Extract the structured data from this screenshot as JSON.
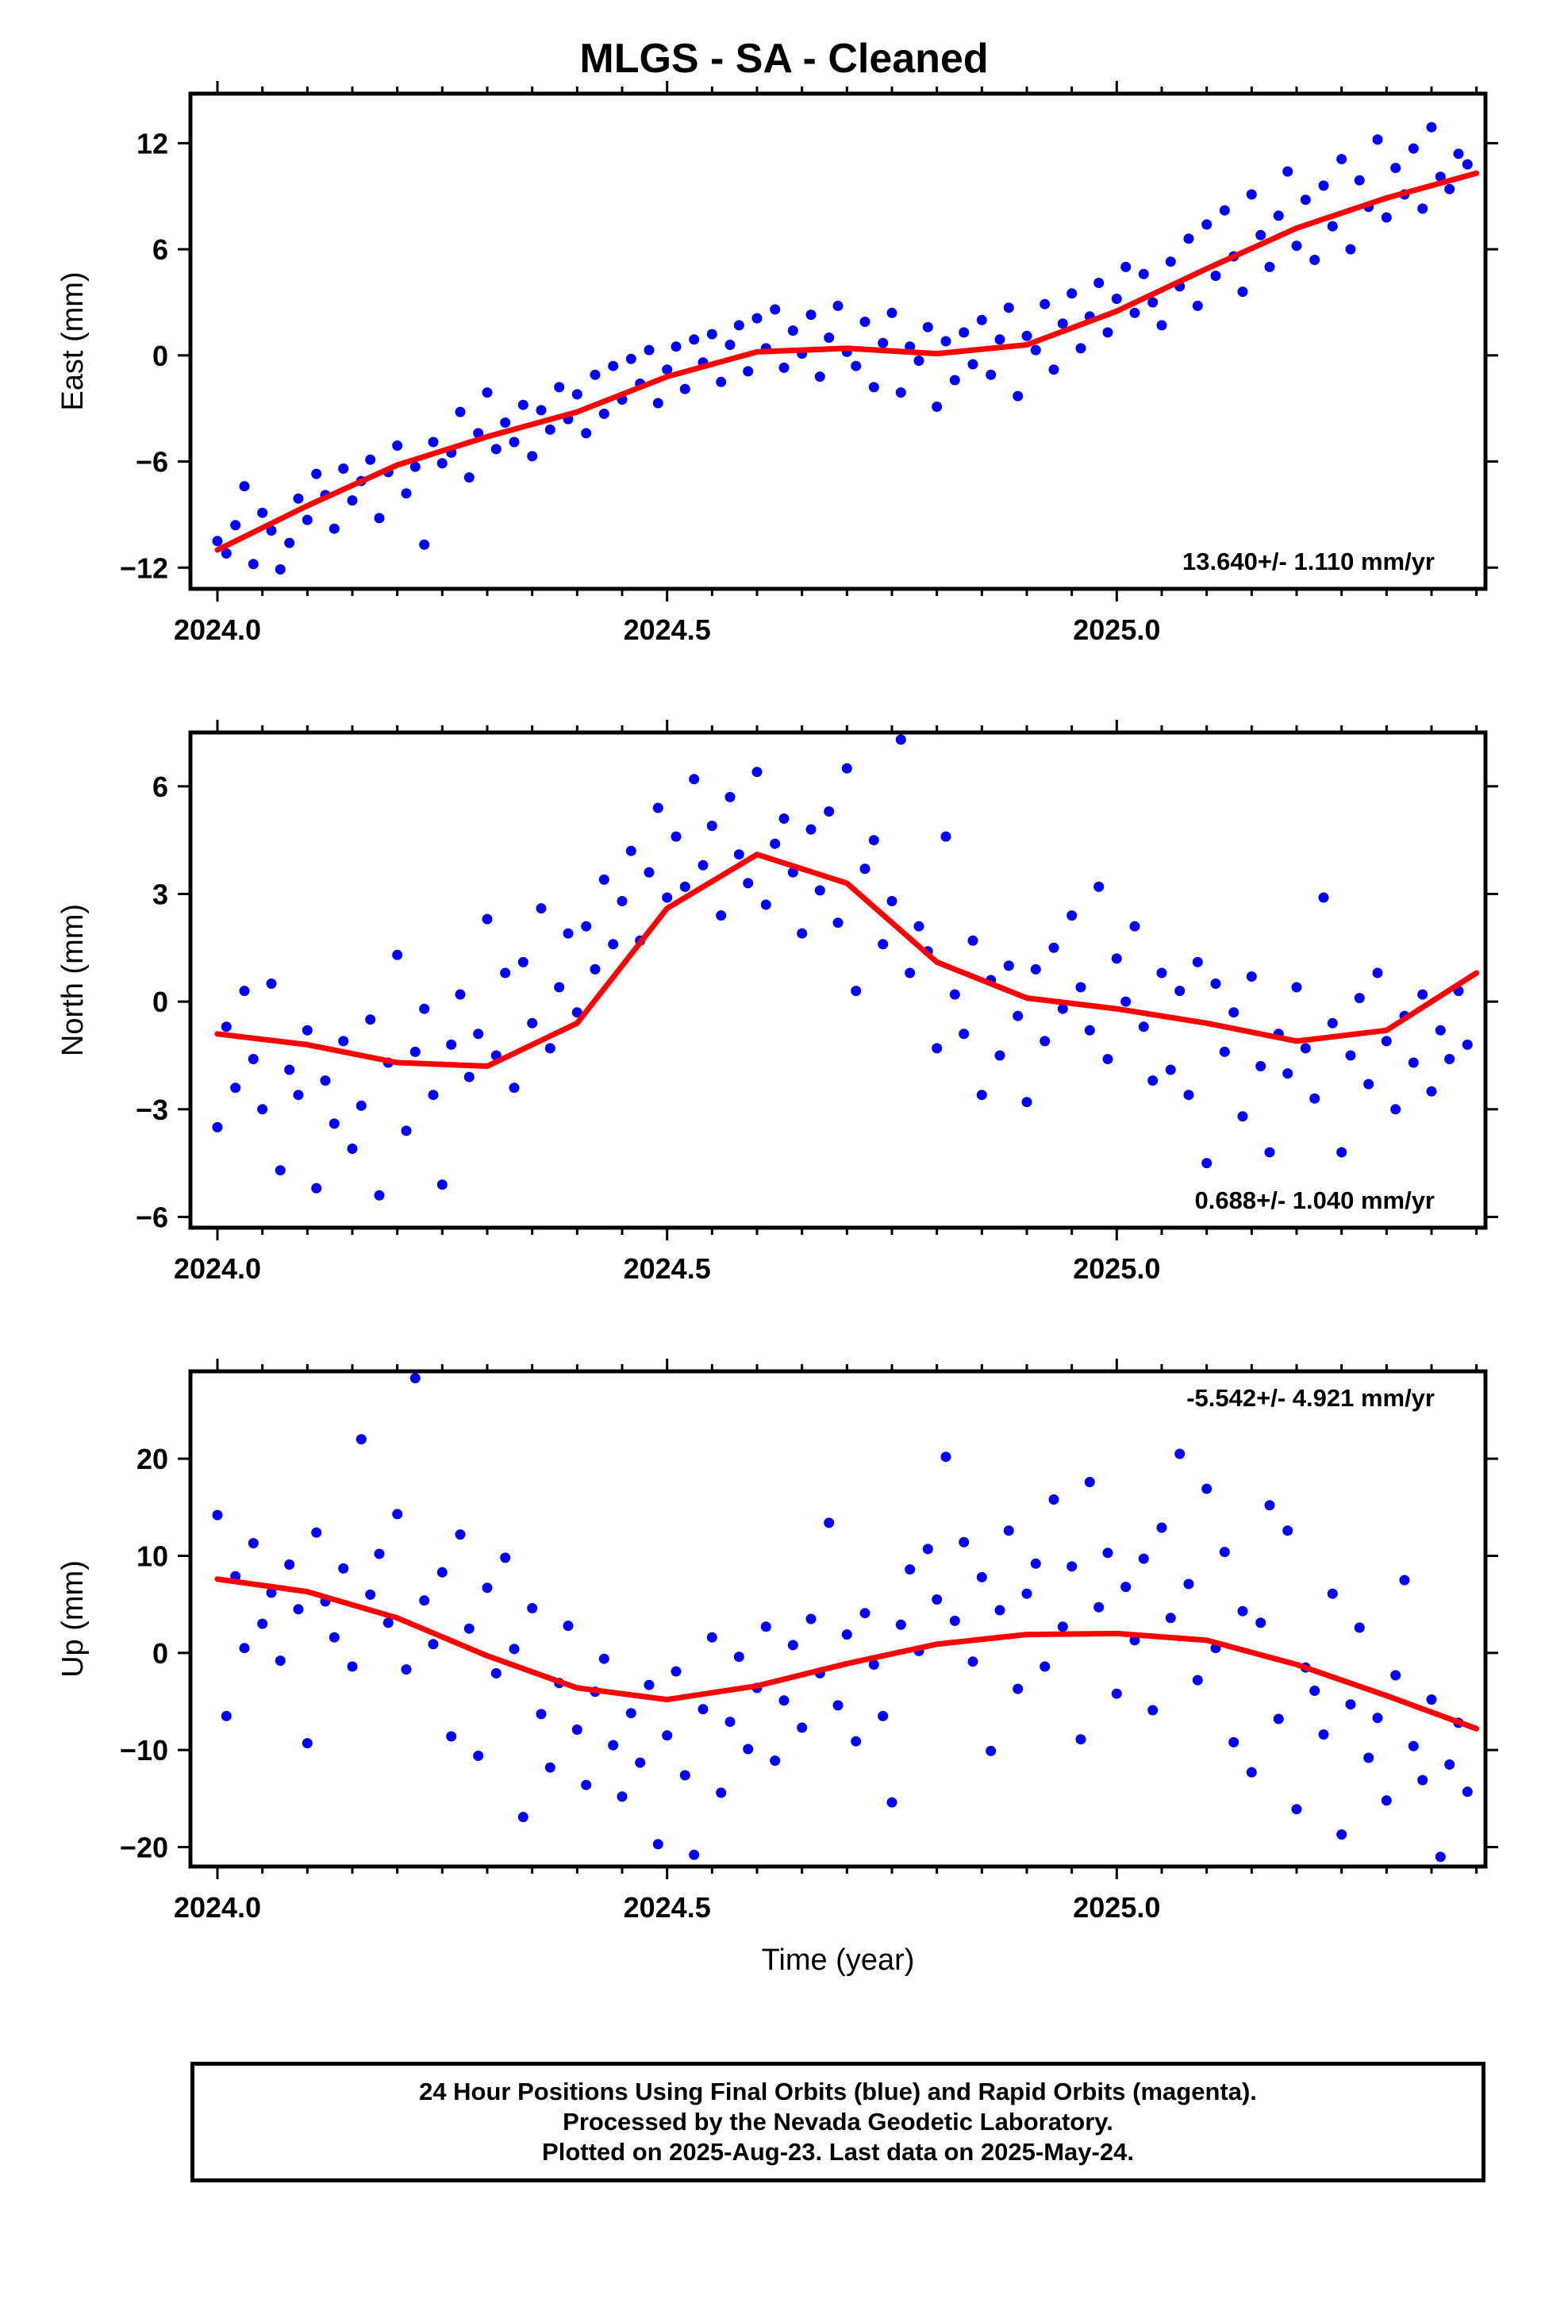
{
  "title": "MLGS  - SA - Cleaned",
  "footer": {
    "line1": "24 Hour Positions Using Final Orbits (blue) and Rapid Orbits (magenta).",
    "line2": "Processed by the Nevada Geodetic Laboratory.",
    "line3": "Plotted on 2025-Aug-23. Last data on 2025-May-24."
  },
  "colors": {
    "points": "#0000ff",
    "fit": "#ff0000",
    "axes": "#000000"
  },
  "chart_data": [
    {
      "type": "scatter",
      "name": "east",
      "ylabel": "East (mm)",
      "xlabel": "",
      "xlim": [
        2023.97,
        2025.41
      ],
      "ylim": [
        -13.2,
        14.8
      ],
      "xticks": [
        2024.0,
        2024.5,
        2025.0
      ],
      "xtick_labels": [
        "2024.0",
        "2024.5",
        "2025.0"
      ],
      "yticks": [
        -12,
        -6,
        0,
        6,
        12
      ],
      "ytick_labels": [
        "−12",
        "−6",
        "0",
        "6",
        "12"
      ],
      "rate_text": "13.640+/- 1.110 mm/yr",
      "rate_position": "bottom-right",
      "fit": {
        "x": [
          2024.0,
          2024.1,
          2024.2,
          2024.3,
          2024.4,
          2024.5,
          2024.6,
          2024.7,
          2024.8,
          2024.9,
          2025.0,
          2025.1,
          2025.2,
          2025.3,
          2025.4
        ],
        "y": [
          -11.0,
          -8.5,
          -6.2,
          -4.6,
          -3.2,
          -1.2,
          0.2,
          0.4,
          0.1,
          0.6,
          2.5,
          4.9,
          7.2,
          8.9,
          10.3
        ]
      },
      "points": {
        "x": [
          2024.0,
          2024.01,
          2024.02,
          2024.03,
          2024.04,
          2024.05,
          2024.06,
          2024.07,
          2024.08,
          2024.09,
          2024.1,
          2024.11,
          2024.12,
          2024.13,
          2024.14,
          2024.15,
          2024.16,
          2024.17,
          2024.18,
          2024.19,
          2024.2,
          2024.21,
          2024.22,
          2024.23,
          2024.24,
          2024.25,
          2024.26,
          2024.27,
          2024.28,
          2024.29,
          2024.3,
          2024.31,
          2024.32,
          2024.33,
          2024.34,
          2024.35,
          2024.36,
          2024.37,
          2024.38,
          2024.39,
          2024.4,
          2024.41,
          2024.42,
          2024.43,
          2024.44,
          2024.45,
          2024.46,
          2024.47,
          2024.48,
          2024.49,
          2024.5,
          2024.51,
          2024.52,
          2024.53,
          2024.54,
          2024.55,
          2024.56,
          2024.57,
          2024.58,
          2024.59,
          2024.6,
          2024.61,
          2024.62,
          2024.63,
          2024.64,
          2024.65,
          2024.66,
          2024.67,
          2024.68,
          2024.69,
          2024.7,
          2024.71,
          2024.72,
          2024.73,
          2024.74,
          2024.75,
          2024.76,
          2024.77,
          2024.78,
          2024.79,
          2024.8,
          2024.81,
          2024.82,
          2024.83,
          2024.84,
          2024.85,
          2024.86,
          2024.87,
          2024.88,
          2024.89,
          2024.9,
          2024.91,
          2024.92,
          2024.93,
          2024.94,
          2024.95,
          2024.96,
          2024.97,
          2024.98,
          2024.99,
          2025.0,
          2025.01,
          2025.02,
          2025.03,
          2025.04,
          2025.05,
          2025.06,
          2025.07,
          2025.08,
          2025.09,
          2025.1,
          2025.11,
          2025.12,
          2025.13,
          2025.14,
          2025.15,
          2025.16,
          2025.17,
          2025.18,
          2025.19,
          2025.2,
          2025.21,
          2025.22,
          2025.23,
          2025.24,
          2025.25,
          2025.26,
          2025.27,
          2025.28,
          2025.29,
          2025.3,
          2025.31,
          2025.32,
          2025.33,
          2025.34,
          2025.35,
          2025.36,
          2025.37,
          2025.38,
          2025.39
        ],
        "y": [
          -10.5,
          -11.2,
          -9.6,
          -7.4,
          -11.8,
          -8.9,
          -9.9,
          -12.1,
          -10.6,
          -8.1,
          -9.3,
          -6.7,
          -7.9,
          -9.8,
          -6.4,
          -8.2,
          -7.1,
          -5.9,
          -9.2,
          -6.6,
          -5.1,
          -7.8,
          -6.3,
          -10.7,
          -4.9,
          -6.1,
          -5.5,
          -3.2,
          -6.9,
          -4.4,
          -2.1,
          -5.3,
          -3.8,
          -4.9,
          -2.8,
          -5.7,
          -3.1,
          -4.2,
          -1.8,
          -3.6,
          -2.2,
          -4.4,
          -1.1,
          -3.3,
          -0.6,
          -2.5,
          -0.2,
          -1.6,
          0.3,
          -2.7,
          -0.8,
          0.5,
          -1.9,
          0.9,
          -0.4,
          1.2,
          -1.5,
          0.6,
          1.7,
          -0.9,
          2.1,
          0.4,
          2.6,
          -0.7,
          1.4,
          0.1,
          2.3,
          -1.2,
          1.0,
          2.8,
          0.2,
          -0.6,
          1.9,
          -1.8,
          0.7,
          2.4,
          -2.1,
          0.5,
          -0.3,
          1.6,
          -2.9,
          0.8,
          -1.4,
          1.3,
          -0.5,
          2.0,
          -1.1,
          0.9,
          2.7,
          -2.3,
          1.1,
          0.3,
          2.9,
          -0.8,
          1.8,
          3.5,
          0.4,
          2.2,
          4.1,
          1.3,
          3.2,
          5.0,
          2.4,
          4.6,
          3.0,
          1.7,
          5.3,
          3.9,
          6.6,
          2.8,
          7.4,
          4.5,
          8.2,
          5.6,
          3.6,
          9.1,
          6.8,
          5.0,
          7.9,
          10.4,
          6.2,
          8.8,
          5.4,
          9.6,
          7.3,
          11.1,
          6.0,
          9.9,
          8.4,
          12.2,
          7.8,
          10.6,
          9.1,
          11.7,
          8.3,
          12.9,
          10.1,
          9.4,
          11.4,
          10.8
        ]
      }
    },
    {
      "type": "scatter",
      "name": "north",
      "ylabel": "North (mm)",
      "xlabel": "",
      "xlim": [
        2023.97,
        2025.41
      ],
      "ylim": [
        -6.3,
        7.5
      ],
      "xticks": [
        2024.0,
        2024.5,
        2025.0
      ],
      "xtick_labels": [
        "2024.0",
        "2024.5",
        "2025.0"
      ],
      "yticks": [
        -6,
        -3,
        0,
        3,
        6
      ],
      "ytick_labels": [
        "−6",
        "−3",
        "0",
        "3",
        "6"
      ],
      "rate_text": "0.688+/- 1.040 mm/yr",
      "rate_position": "bottom-right",
      "fit": {
        "x": [
          2024.0,
          2024.1,
          2024.2,
          2024.3,
          2024.4,
          2024.5,
          2024.6,
          2024.7,
          2024.8,
          2024.9,
          2025.0,
          2025.1,
          2025.2,
          2025.3,
          2025.4
        ],
        "y": [
          -0.9,
          -1.2,
          -1.7,
          -1.8,
          -0.6,
          2.6,
          4.1,
          3.3,
          1.1,
          0.1,
          -0.2,
          -0.6,
          -1.1,
          -0.8,
          0.8
        ]
      },
      "points": {
        "x": [
          2024.0,
          2024.01,
          2024.02,
          2024.03,
          2024.04,
          2024.05,
          2024.06,
          2024.07,
          2024.08,
          2024.09,
          2024.1,
          2024.11,
          2024.12,
          2024.13,
          2024.14,
          2024.15,
          2024.16,
          2024.17,
          2024.18,
          2024.19,
          2024.2,
          2024.21,
          2024.22,
          2024.23,
          2024.24,
          2024.25,
          2024.26,
          2024.27,
          2024.28,
          2024.29,
          2024.3,
          2024.31,
          2024.32,
          2024.33,
          2024.34,
          2024.35,
          2024.36,
          2024.37,
          2024.38,
          2024.39,
          2024.4,
          2024.41,
          2024.42,
          2024.43,
          2024.44,
          2024.45,
          2024.46,
          2024.47,
          2024.48,
          2024.49,
          2024.5,
          2024.51,
          2024.52,
          2024.53,
          2024.54,
          2024.55,
          2024.56,
          2024.57,
          2024.58,
          2024.59,
          2024.6,
          2024.61,
          2024.62,
          2024.63,
          2024.64,
          2024.65,
          2024.66,
          2024.67,
          2024.68,
          2024.69,
          2024.7,
          2024.71,
          2024.72,
          2024.73,
          2024.74,
          2024.75,
          2024.76,
          2024.77,
          2024.78,
          2024.79,
          2024.8,
          2024.81,
          2024.82,
          2024.83,
          2024.84,
          2024.85,
          2024.86,
          2024.87,
          2024.88,
          2024.89,
          2024.9,
          2024.91,
          2024.92,
          2024.93,
          2024.94,
          2024.95,
          2024.96,
          2024.97,
          2024.98,
          2024.99,
          2025.0,
          2025.01,
          2025.02,
          2025.03,
          2025.04,
          2025.05,
          2025.06,
          2025.07,
          2025.08,
          2025.09,
          2025.1,
          2025.11,
          2025.12,
          2025.13,
          2025.14,
          2025.15,
          2025.16,
          2025.17,
          2025.18,
          2025.19,
          2025.2,
          2025.21,
          2025.22,
          2025.23,
          2025.24,
          2025.25,
          2025.26,
          2025.27,
          2025.28,
          2025.29,
          2025.3,
          2025.31,
          2025.32,
          2025.33,
          2025.34,
          2025.35,
          2025.36,
          2025.37,
          2025.38,
          2025.39
        ],
        "y": [
          -3.5,
          -0.7,
          -2.4,
          0.3,
          -1.6,
          -3.0,
          0.5,
          -4.7,
          -1.9,
          -2.6,
          -0.8,
          -5.2,
          -2.2,
          -3.4,
          -1.1,
          -4.1,
          -2.9,
          -0.5,
          -5.4,
          -1.7,
          1.3,
          -3.6,
          -1.4,
          -0.2,
          -2.6,
          -5.1,
          -1.2,
          0.2,
          -2.1,
          -0.9,
          2.3,
          -1.5,
          0.8,
          -2.4,
          1.1,
          -0.6,
          2.6,
          -1.3,
          0.4,
          1.9,
          -0.3,
          2.1,
          0.9,
          3.4,
          1.6,
          2.8,
          4.2,
          1.7,
          3.6,
          5.4,
          2.9,
          4.6,
          3.2,
          6.2,
          3.8,
          4.9,
          2.4,
          5.7,
          4.1,
          3.3,
          6.4,
          2.7,
          4.4,
          5.1,
          3.6,
          1.9,
          4.8,
          3.1,
          5.3,
          2.2,
          6.5,
          0.3,
          3.7,
          4.5,
          1.6,
          2.8,
          7.3,
          0.8,
          2.1,
          1.4,
          -1.3,
          4.6,
          0.2,
          -0.9,
          1.7,
          -2.6,
          0.6,
          -1.5,
          1.0,
          -0.4,
          -2.8,
          0.9,
          -1.1,
          1.5,
          -0.2,
          2.4,
          0.4,
          -0.8,
          3.2,
          -1.6,
          1.2,
          0.0,
          2.1,
          -0.7,
          -2.2,
          0.8,
          -1.9,
          0.3,
          -2.6,
          1.1,
          -4.5,
          0.5,
          -1.4,
          -0.3,
          -3.2,
          0.7,
          -1.8,
          -4.2,
          -0.9,
          -2.0,
          0.4,
          -1.3,
          -2.7,
          2.9,
          -0.6,
          -4.2,
          -1.5,
          0.1,
          -2.3,
          0.8,
          -1.1,
          -3.0,
          -0.4,
          -1.7,
          0.2,
          -2.5,
          -0.8,
          -1.6,
          0.3,
          -1.2
        ]
      }
    },
    {
      "type": "scatter",
      "name": "up",
      "ylabel": "Up (mm)",
      "xlabel": "Time (year)",
      "xlim": [
        2023.97,
        2025.41
      ],
      "ylim": [
        -22,
        29
      ],
      "xticks": [
        2024.0,
        2024.5,
        2025.0
      ],
      "xtick_labels": [
        "2024.0",
        "2024.5",
        "2025.0"
      ],
      "yticks": [
        -20,
        -10,
        0,
        10,
        20
      ],
      "ytick_labels": [
        "−20",
        "−10",
        "0",
        "10",
        "20"
      ],
      "rate_text": "-5.542+/- 4.921 mm/yr",
      "rate_position": "top-right",
      "fit": {
        "x": [
          2024.0,
          2024.1,
          2024.2,
          2024.3,
          2024.4,
          2024.5,
          2024.6,
          2024.7,
          2024.8,
          2024.9,
          2025.0,
          2025.1,
          2025.2,
          2025.3,
          2025.4
        ],
        "y": [
          7.6,
          6.3,
          3.6,
          -0.3,
          -3.6,
          -4.8,
          -3.4,
          -1.1,
          0.9,
          1.9,
          2.0,
          1.3,
          -1.2,
          -4.4,
          -7.8
        ]
      },
      "points": {
        "x": [
          2024.0,
          2024.01,
          2024.02,
          2024.03,
          2024.04,
          2024.05,
          2024.06,
          2024.07,
          2024.08,
          2024.09,
          2024.1,
          2024.11,
          2024.12,
          2024.13,
          2024.14,
          2024.15,
          2024.16,
          2024.17,
          2024.18,
          2024.19,
          2024.2,
          2024.21,
          2024.22,
          2024.23,
          2024.24,
          2024.25,
          2024.26,
          2024.27,
          2024.28,
          2024.29,
          2024.3,
          2024.31,
          2024.32,
          2024.33,
          2024.34,
          2024.35,
          2024.36,
          2024.37,
          2024.38,
          2024.39,
          2024.4,
          2024.41,
          2024.42,
          2024.43,
          2024.44,
          2024.45,
          2024.46,
          2024.47,
          2024.48,
          2024.49,
          2024.5,
          2024.51,
          2024.52,
          2024.53,
          2024.54,
          2024.55,
          2024.56,
          2024.57,
          2024.58,
          2024.59,
          2024.6,
          2024.61,
          2024.62,
          2024.63,
          2024.64,
          2024.65,
          2024.66,
          2024.67,
          2024.68,
          2024.69,
          2024.7,
          2024.71,
          2024.72,
          2024.73,
          2024.74,
          2024.75,
          2024.76,
          2024.77,
          2024.78,
          2024.79,
          2024.8,
          2024.81,
          2024.82,
          2024.83,
          2024.84,
          2024.85,
          2024.86,
          2024.87,
          2024.88,
          2024.89,
          2024.9,
          2024.91,
          2024.92,
          2024.93,
          2024.94,
          2024.95,
          2024.96,
          2024.97,
          2024.98,
          2024.99,
          2025.0,
          2025.01,
          2025.02,
          2025.03,
          2025.04,
          2025.05,
          2025.06,
          2025.07,
          2025.08,
          2025.09,
          2025.1,
          2025.11,
          2025.12,
          2025.13,
          2025.14,
          2025.15,
          2025.16,
          2025.17,
          2025.18,
          2025.19,
          2025.2,
          2025.21,
          2025.22,
          2025.23,
          2025.24,
          2025.25,
          2025.26,
          2025.27,
          2025.28,
          2025.29,
          2025.3,
          2025.31,
          2025.32,
          2025.33,
          2025.34,
          2025.35,
          2025.36,
          2025.37,
          2025.38,
          2025.39
        ],
        "y": [
          14.2,
          -6.5,
          7.9,
          0.5,
          11.3,
          3.0,
          6.2,
          -0.8,
          9.1,
          4.5,
          -9.3,
          12.4,
          5.3,
          1.6,
          8.7,
          -1.4,
          22.0,
          6.0,
          10.2,
          3.1,
          14.3,
          -1.7,
          28.3,
          5.4,
          0.9,
          8.3,
          -8.6,
          12.2,
          2.5,
          -10.6,
          6.7,
          -2.1,
          9.8,
          0.4,
          -16.9,
          4.6,
          -6.3,
          -11.8,
          -3.1,
          2.8,
          -7.9,
          -13.6,
          -4.0,
          -0.6,
          -9.5,
          -14.8,
          -6.2,
          -11.3,
          -3.3,
          -19.7,
          -8.5,
          -1.9,
          -12.6,
          -20.8,
          -5.8,
          1.6,
          -14.4,
          -7.1,
          -0.4,
          -9.9,
          -3.6,
          2.7,
          -11.1,
          -4.9,
          0.8,
          -7.7,
          3.5,
          -2.1,
          13.4,
          -5.4,
          1.9,
          -9.1,
          4.1,
          -1.2,
          -6.5,
          -15.4,
          2.9,
          8.6,
          0.2,
          10.7,
          5.5,
          20.2,
          3.3,
          11.4,
          -0.9,
          7.8,
          -10.1,
          4.4,
          12.6,
          -3.7,
          6.1,
          9.2,
          -1.4,
          15.8,
          2.7,
          8.9,
          -8.9,
          17.6,
          4.7,
          10.3,
          -4.2,
          6.8,
          1.3,
          9.7,
          -5.9,
          12.9,
          3.6,
          20.5,
          7.1,
          -2.8,
          16.9,
          0.5,
          10.4,
          -9.2,
          4.3,
          -12.3,
          3.1,
          15.2,
          -6.8,
          12.6,
          -16.1,
          -1.5,
          -3.9,
          -8.4,
          6.1,
          -18.7,
          -5.3,
          2.6,
          -10.8,
          -6.7,
          -15.2,
          -2.3,
          7.5,
          -9.6,
          -13.1,
          -4.8,
          -21.0,
          -11.5,
          -7.2,
          -14.3
        ]
      }
    }
  ]
}
